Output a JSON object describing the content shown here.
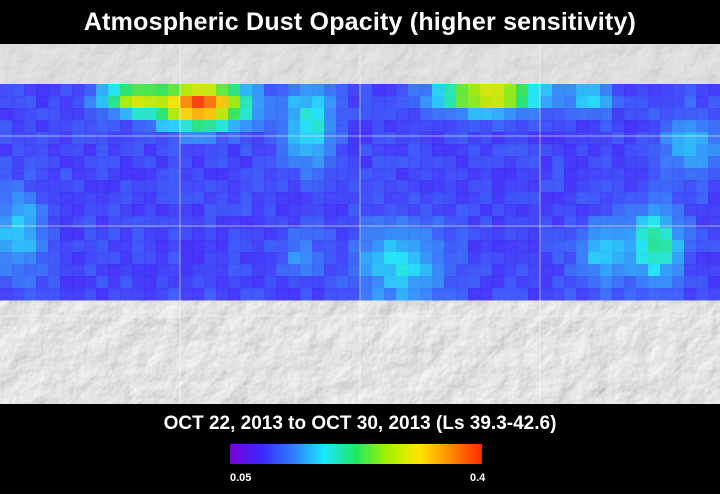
{
  "title": "Atmospheric Dust Opacity (higher sensitivity)",
  "date_range": "OCT 22, 2013 to OCT 30, 2013 (Ls 39.3-42.6)",
  "colorbar": {
    "min_label": "0.05",
    "max_label": "0.4",
    "min_value": 0.05,
    "max_value": 0.4,
    "colors": [
      "#7a00d8",
      "#3a28ff",
      "#2f7dff",
      "#18e8ff",
      "#1fe860",
      "#a6f000",
      "#ffe600",
      "#ff8a00",
      "#ff2a00"
    ]
  },
  "map": {
    "description_terrain": "shaded relief",
    "band_colors": {
      "low": "#5b3fe6",
      "mid": "#2f58ff",
      "high_cyan": "#3fd6f0",
      "hot": "#ff6a00"
    }
  }
}
